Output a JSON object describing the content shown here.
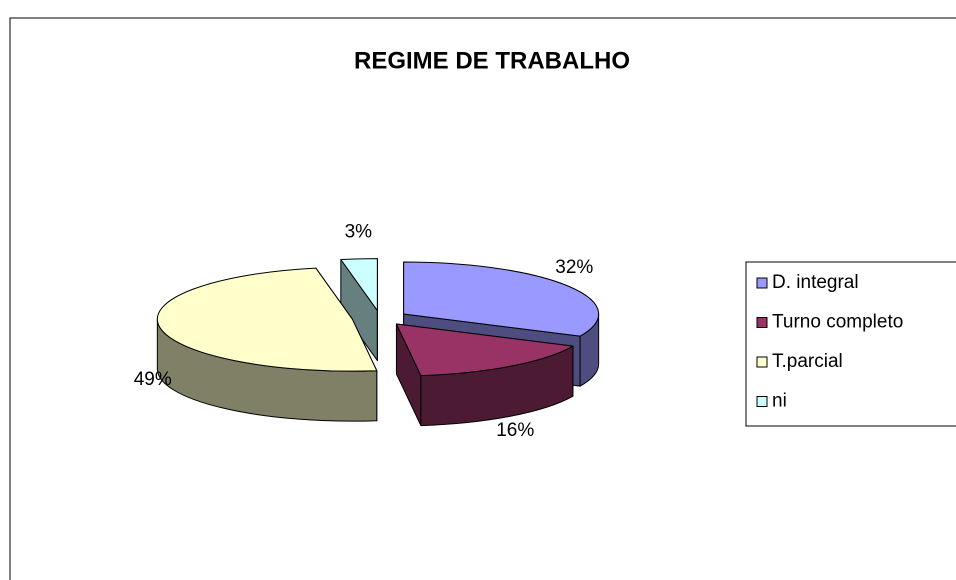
{
  "chart_data": {
    "type": "pie",
    "title": "REGIME DE TRABALHO",
    "categories": [
      "D. integral",
      "Turno completo",
      "T.parcial",
      "ni"
    ],
    "values": [
      32,
      16,
      49,
      3
    ],
    "value_labels": [
      "32%",
      "16%",
      "49%",
      "3%"
    ],
    "colors": [
      "#9999ff",
      "#993366",
      "#ffffcc",
      "#ccffff"
    ],
    "legend": "right"
  }
}
